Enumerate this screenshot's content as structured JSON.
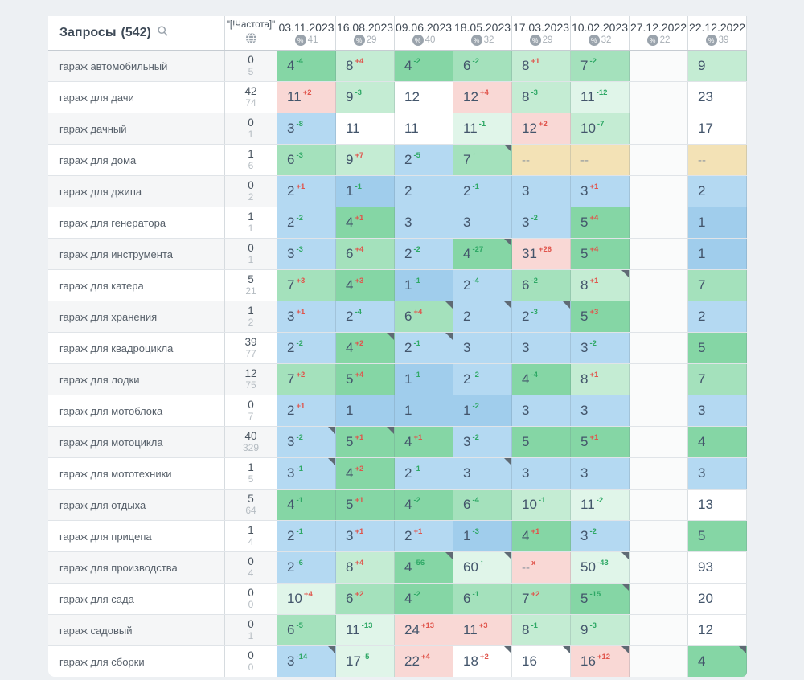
{
  "header": {
    "queries_label": "Запросы",
    "queries_count": "(542)",
    "frequency_label": "\"[!Частота]\"",
    "columns": [
      {
        "date": "03.11.2023",
        "pct": "41"
      },
      {
        "date": "16.08.2023",
        "pct": "29"
      },
      {
        "date": "09.06.2023",
        "pct": "40"
      },
      {
        "date": "18.05.2023",
        "pct": "32"
      },
      {
        "date": "17.03.2023",
        "pct": "29"
      },
      {
        "date": "10.02.2023",
        "pct": "32"
      },
      {
        "date": "27.12.2022",
        "pct": "22"
      },
      {
        "date": "22.12.2022",
        "pct": "39"
      }
    ]
  },
  "colors": {
    "b1": "#a0cdec",
    "b": "#b4d9f2",
    "g1": "#85d6a5",
    "g2": "#a4e1bc",
    "g3": "#c4ecd3",
    "g4": "#e0f5e9",
    "w": "#ffffff",
    "p": "#f9d8d5",
    "t": "#f3e2b6",
    "e": "#fafbfb",
    "delta_up": "#e0554c",
    "delta_down": "#2ea865"
  },
  "rows": [
    {
      "keyword": "гараж автомобильный",
      "freq": "0",
      "freq2": "5",
      "cells": [
        {
          "v": "4",
          "d": "-4",
          "dc": "g",
          "bg": "g1"
        },
        {
          "v": "8",
          "d": "+4",
          "dc": "r",
          "bg": "g3"
        },
        {
          "v": "4",
          "d": "-2",
          "dc": "g",
          "bg": "g1"
        },
        {
          "v": "6",
          "d": "-2",
          "dc": "g",
          "bg": "g2"
        },
        {
          "v": "8",
          "d": "+1",
          "dc": "r",
          "bg": "g3"
        },
        {
          "v": "7",
          "d": "-2",
          "dc": "g",
          "bg": "g2"
        },
        {
          "v": "",
          "bg": "e"
        },
        {
          "v": "9",
          "bg": "g3"
        }
      ]
    },
    {
      "keyword": "гараж для дачи",
      "freq": "42",
      "freq2": "74",
      "cells": [
        {
          "v": "11",
          "d": "+2",
          "dc": "r",
          "bg": "p"
        },
        {
          "v": "9",
          "d": "-3",
          "dc": "g",
          "bg": "g3"
        },
        {
          "v": "12",
          "bg": "w"
        },
        {
          "v": "12",
          "d": "+4",
          "dc": "r",
          "bg": "p"
        },
        {
          "v": "8",
          "d": "-3",
          "dc": "g",
          "bg": "g3"
        },
        {
          "v": "11",
          "d": "-12",
          "dc": "g",
          "bg": "g4"
        },
        {
          "v": "",
          "bg": "e"
        },
        {
          "v": "23",
          "bg": "w"
        }
      ]
    },
    {
      "keyword": "гараж дачный",
      "freq": "0",
      "freq2": "1",
      "cells": [
        {
          "v": "3",
          "d": "-8",
          "dc": "g",
          "bg": "b"
        },
        {
          "v": "11",
          "bg": "w"
        },
        {
          "v": "11",
          "bg": "w"
        },
        {
          "v": "11",
          "d": "-1",
          "dc": "g",
          "bg": "g4"
        },
        {
          "v": "12",
          "d": "+2",
          "dc": "r",
          "bg": "p"
        },
        {
          "v": "10",
          "d": "-7",
          "dc": "g",
          "bg": "g3"
        },
        {
          "v": "",
          "bg": "e"
        },
        {
          "v": "17",
          "bg": "w"
        }
      ]
    },
    {
      "keyword": "гараж для дома",
      "freq": "1",
      "freq2": "6",
      "cells": [
        {
          "v": "6",
          "d": "-3",
          "dc": "g",
          "bg": "g2"
        },
        {
          "v": "9",
          "d": "+7",
          "dc": "r",
          "bg": "g3"
        },
        {
          "v": "2",
          "d": "-5",
          "dc": "g",
          "bg": "b"
        },
        {
          "v": "7",
          "d": "↑",
          "dc": "g",
          "bg": "g2",
          "fl": true
        },
        {
          "v": "--",
          "bg": "t"
        },
        {
          "v": "--",
          "bg": "t"
        },
        {
          "v": "",
          "bg": "e"
        },
        {
          "v": "--",
          "bg": "t"
        }
      ]
    },
    {
      "keyword": "гараж для джипа",
      "freq": "0",
      "freq2": "2",
      "cells": [
        {
          "v": "2",
          "d": "+1",
          "dc": "r",
          "bg": "b"
        },
        {
          "v": "1",
          "d": "-1",
          "dc": "g",
          "bg": "b1"
        },
        {
          "v": "2",
          "bg": "b"
        },
        {
          "v": "2",
          "d": "-1",
          "dc": "g",
          "bg": "b"
        },
        {
          "v": "3",
          "bg": "b"
        },
        {
          "v": "3",
          "d": "+1",
          "dc": "r",
          "bg": "b"
        },
        {
          "v": "",
          "bg": "e"
        },
        {
          "v": "2",
          "bg": "b"
        }
      ]
    },
    {
      "keyword": "гараж для генератора",
      "freq": "1",
      "freq2": "1",
      "cells": [
        {
          "v": "2",
          "d": "-2",
          "dc": "g",
          "bg": "b"
        },
        {
          "v": "4",
          "d": "+1",
          "dc": "r",
          "bg": "g1"
        },
        {
          "v": "3",
          "bg": "b"
        },
        {
          "v": "3",
          "bg": "b"
        },
        {
          "v": "3",
          "d": "-2",
          "dc": "g",
          "bg": "b"
        },
        {
          "v": "5",
          "d": "+4",
          "dc": "r",
          "bg": "g1"
        },
        {
          "v": "",
          "bg": "e"
        },
        {
          "v": "1",
          "bg": "b1"
        }
      ]
    },
    {
      "keyword": "гараж для инструмента",
      "freq": "0",
      "freq2": "1",
      "cells": [
        {
          "v": "3",
          "d": "-3",
          "dc": "g",
          "bg": "b"
        },
        {
          "v": "6",
          "d": "+4",
          "dc": "r",
          "bg": "g2"
        },
        {
          "v": "2",
          "d": "-2",
          "dc": "g",
          "bg": "b"
        },
        {
          "v": "4",
          "d": "-27",
          "dc": "g",
          "bg": "g1",
          "fl": true
        },
        {
          "v": "31",
          "d": "+26",
          "dc": "r",
          "bg": "p"
        },
        {
          "v": "5",
          "d": "+4",
          "dc": "r",
          "bg": "g1"
        },
        {
          "v": "",
          "bg": "e"
        },
        {
          "v": "1",
          "bg": "b1"
        }
      ]
    },
    {
      "keyword": "гараж для катера",
      "freq": "5",
      "freq2": "21",
      "cells": [
        {
          "v": "7",
          "d": "+3",
          "dc": "r",
          "bg": "g2"
        },
        {
          "v": "4",
          "d": "+3",
          "dc": "r",
          "bg": "g1"
        },
        {
          "v": "1",
          "d": "-1",
          "dc": "g",
          "bg": "b1"
        },
        {
          "v": "2",
          "d": "-4",
          "dc": "g",
          "bg": "b"
        },
        {
          "v": "6",
          "d": "-2",
          "dc": "g",
          "bg": "g2"
        },
        {
          "v": "8",
          "d": "+1",
          "dc": "r",
          "bg": "g3",
          "fl": true
        },
        {
          "v": "",
          "bg": "e"
        },
        {
          "v": "7",
          "bg": "g2"
        }
      ]
    },
    {
      "keyword": "гараж для хранения",
      "freq": "1",
      "freq2": "2",
      "cells": [
        {
          "v": "3",
          "d": "+1",
          "dc": "r",
          "bg": "b"
        },
        {
          "v": "2",
          "d": "-4",
          "dc": "g",
          "bg": "b"
        },
        {
          "v": "6",
          "d": "+4",
          "dc": "r",
          "bg": "g2",
          "fl": true
        },
        {
          "v": "2",
          "bg": "b",
          "fl": true
        },
        {
          "v": "2",
          "d": "-3",
          "dc": "g",
          "bg": "b",
          "fl": true
        },
        {
          "v": "5",
          "d": "+3",
          "dc": "r",
          "bg": "g1"
        },
        {
          "v": "",
          "bg": "e"
        },
        {
          "v": "2",
          "bg": "b"
        }
      ]
    },
    {
      "keyword": "гараж для квадроцикла",
      "freq": "39",
      "freq2": "77",
      "cells": [
        {
          "v": "2",
          "d": "-2",
          "dc": "g",
          "bg": "b"
        },
        {
          "v": "4",
          "d": "+2",
          "dc": "r",
          "bg": "g1",
          "fl": true
        },
        {
          "v": "2",
          "d": "-1",
          "dc": "g",
          "bg": "b",
          "fl": true
        },
        {
          "v": "3",
          "bg": "b"
        },
        {
          "v": "3",
          "bg": "b"
        },
        {
          "v": "3",
          "d": "-2",
          "dc": "g",
          "bg": "b"
        },
        {
          "v": "",
          "bg": "e"
        },
        {
          "v": "5",
          "bg": "g1"
        }
      ]
    },
    {
      "keyword": "гараж для лодки",
      "freq": "12",
      "freq2": "75",
      "cells": [
        {
          "v": "7",
          "d": "+2",
          "dc": "r",
          "bg": "g2"
        },
        {
          "v": "5",
          "d": "+4",
          "dc": "r",
          "bg": "g1"
        },
        {
          "v": "1",
          "d": "-1",
          "dc": "g",
          "bg": "b1"
        },
        {
          "v": "2",
          "d": "-2",
          "dc": "g",
          "bg": "b"
        },
        {
          "v": "4",
          "d": "-4",
          "dc": "g",
          "bg": "g1"
        },
        {
          "v": "8",
          "d": "+1",
          "dc": "r",
          "bg": "g3"
        },
        {
          "v": "",
          "bg": "e"
        },
        {
          "v": "7",
          "bg": "g2"
        }
      ]
    },
    {
      "keyword": "гараж для мотоблока",
      "freq": "0",
      "freq2": "7",
      "cells": [
        {
          "v": "2",
          "d": "+1",
          "dc": "r",
          "bg": "b"
        },
        {
          "v": "1",
          "bg": "b1"
        },
        {
          "v": "1",
          "bg": "b1"
        },
        {
          "v": "1",
          "d": "-2",
          "dc": "g",
          "bg": "b1"
        },
        {
          "v": "3",
          "bg": "b"
        },
        {
          "v": "3",
          "bg": "b"
        },
        {
          "v": "",
          "bg": "e"
        },
        {
          "v": "3",
          "bg": "b"
        }
      ]
    },
    {
      "keyword": "гараж для мотоцикла",
      "freq": "40",
      "freq2": "329",
      "cells": [
        {
          "v": "3",
          "d": "-2",
          "dc": "g",
          "bg": "b",
          "fl": true
        },
        {
          "v": "5",
          "d": "+1",
          "dc": "r",
          "bg": "g1",
          "fl": true
        },
        {
          "v": "4",
          "d": "+1",
          "dc": "r",
          "bg": "g1"
        },
        {
          "v": "3",
          "d": "-2",
          "dc": "g",
          "bg": "b"
        },
        {
          "v": "5",
          "bg": "g1"
        },
        {
          "v": "5",
          "d": "+1",
          "dc": "r",
          "bg": "g1"
        },
        {
          "v": "",
          "bg": "e"
        },
        {
          "v": "4",
          "bg": "g1"
        }
      ]
    },
    {
      "keyword": "гараж для мототехники",
      "freq": "1",
      "freq2": "5",
      "cells": [
        {
          "v": "3",
          "d": "-1",
          "dc": "g",
          "bg": "b",
          "fl": true
        },
        {
          "v": "4",
          "d": "+2",
          "dc": "r",
          "bg": "g1"
        },
        {
          "v": "2",
          "d": "-1",
          "dc": "g",
          "bg": "b"
        },
        {
          "v": "3",
          "bg": "b",
          "fl": true
        },
        {
          "v": "3",
          "bg": "b"
        },
        {
          "v": "3",
          "bg": "b"
        },
        {
          "v": "",
          "bg": "e"
        },
        {
          "v": "3",
          "bg": "b"
        }
      ]
    },
    {
      "keyword": "гараж для отдыха",
      "freq": "5",
      "freq2": "64",
      "cells": [
        {
          "v": "4",
          "d": "-1",
          "dc": "g",
          "bg": "g1"
        },
        {
          "v": "5",
          "d": "+1",
          "dc": "r",
          "bg": "g1"
        },
        {
          "v": "4",
          "d": "-2",
          "dc": "g",
          "bg": "g1"
        },
        {
          "v": "6",
          "d": "-4",
          "dc": "g",
          "bg": "g2"
        },
        {
          "v": "10",
          "d": "-1",
          "dc": "g",
          "bg": "g3"
        },
        {
          "v": "11",
          "d": "-2",
          "dc": "g",
          "bg": "g4"
        },
        {
          "v": "",
          "bg": "e"
        },
        {
          "v": "13",
          "bg": "w"
        }
      ]
    },
    {
      "keyword": "гараж для прицепа",
      "freq": "1",
      "freq2": "4",
      "cells": [
        {
          "v": "2",
          "d": "-1",
          "dc": "g",
          "bg": "b"
        },
        {
          "v": "3",
          "d": "+1",
          "dc": "r",
          "bg": "b"
        },
        {
          "v": "2",
          "d": "+1",
          "dc": "r",
          "bg": "b"
        },
        {
          "v": "1",
          "d": "-3",
          "dc": "g",
          "bg": "b1"
        },
        {
          "v": "4",
          "d": "+1",
          "dc": "r",
          "bg": "g1"
        },
        {
          "v": "3",
          "d": "-2",
          "dc": "g",
          "bg": "b"
        },
        {
          "v": "",
          "bg": "e"
        },
        {
          "v": "5",
          "bg": "g1"
        }
      ]
    },
    {
      "keyword": "гараж для производства",
      "freq": "0",
      "freq2": "4",
      "cells": [
        {
          "v": "2",
          "d": "-6",
          "dc": "g",
          "bg": "b"
        },
        {
          "v": "8",
          "d": "+4",
          "dc": "r",
          "bg": "g3"
        },
        {
          "v": "4",
          "d": "-56",
          "dc": "g",
          "bg": "g1",
          "fl": true
        },
        {
          "v": "60",
          "d": "↑",
          "dc": "g",
          "bg": "g4",
          "fl": true
        },
        {
          "v": "--",
          "d": "x",
          "dc": "r",
          "bg": "p"
        },
        {
          "v": "50",
          "d": "-43",
          "dc": "g",
          "bg": "g4",
          "fl": true
        },
        {
          "v": "",
          "bg": "e"
        },
        {
          "v": "93",
          "bg": "w"
        }
      ]
    },
    {
      "keyword": "гараж для сада",
      "freq": "0",
      "freq2": "0",
      "cells": [
        {
          "v": "10",
          "d": "+4",
          "dc": "r",
          "bg": "g4"
        },
        {
          "v": "6",
          "d": "+2",
          "dc": "r",
          "bg": "g2"
        },
        {
          "v": "4",
          "d": "-2",
          "dc": "g",
          "bg": "g1"
        },
        {
          "v": "6",
          "d": "-1",
          "dc": "g",
          "bg": "g2"
        },
        {
          "v": "7",
          "d": "+2",
          "dc": "r",
          "bg": "g2"
        },
        {
          "v": "5",
          "d": "-15",
          "dc": "g",
          "bg": "g1",
          "fl": true
        },
        {
          "v": "",
          "bg": "e"
        },
        {
          "v": "20",
          "bg": "w"
        }
      ]
    },
    {
      "keyword": "гараж садовый",
      "freq": "0",
      "freq2": "1",
      "cells": [
        {
          "v": "6",
          "d": "-5",
          "dc": "g",
          "bg": "g2"
        },
        {
          "v": "11",
          "d": "-13",
          "dc": "g",
          "bg": "g4"
        },
        {
          "v": "24",
          "d": "+13",
          "dc": "r",
          "bg": "p"
        },
        {
          "v": "11",
          "d": "+3",
          "dc": "r",
          "bg": "p"
        },
        {
          "v": "8",
          "d": "-1",
          "dc": "g",
          "bg": "g3"
        },
        {
          "v": "9",
          "d": "-3",
          "dc": "g",
          "bg": "g3"
        },
        {
          "v": "",
          "bg": "e"
        },
        {
          "v": "12",
          "bg": "w"
        }
      ]
    },
    {
      "keyword": "гараж для сборки",
      "freq": "0",
      "freq2": "0",
      "cells": [
        {
          "v": "3",
          "d": "-14",
          "dc": "g",
          "bg": "b",
          "fl": true
        },
        {
          "v": "17",
          "d": "-5",
          "dc": "g",
          "bg": "g4"
        },
        {
          "v": "22",
          "d": "+4",
          "dc": "r",
          "bg": "p"
        },
        {
          "v": "18",
          "d": "+2",
          "dc": "r",
          "bg": "w",
          "fl": true
        },
        {
          "v": "16",
          "bg": "w",
          "fl": true
        },
        {
          "v": "16",
          "d": "+12",
          "dc": "r",
          "bg": "p",
          "fl": true
        },
        {
          "v": "",
          "bg": "e"
        },
        {
          "v": "4",
          "bg": "g1",
          "fl": true
        }
      ]
    }
  ]
}
